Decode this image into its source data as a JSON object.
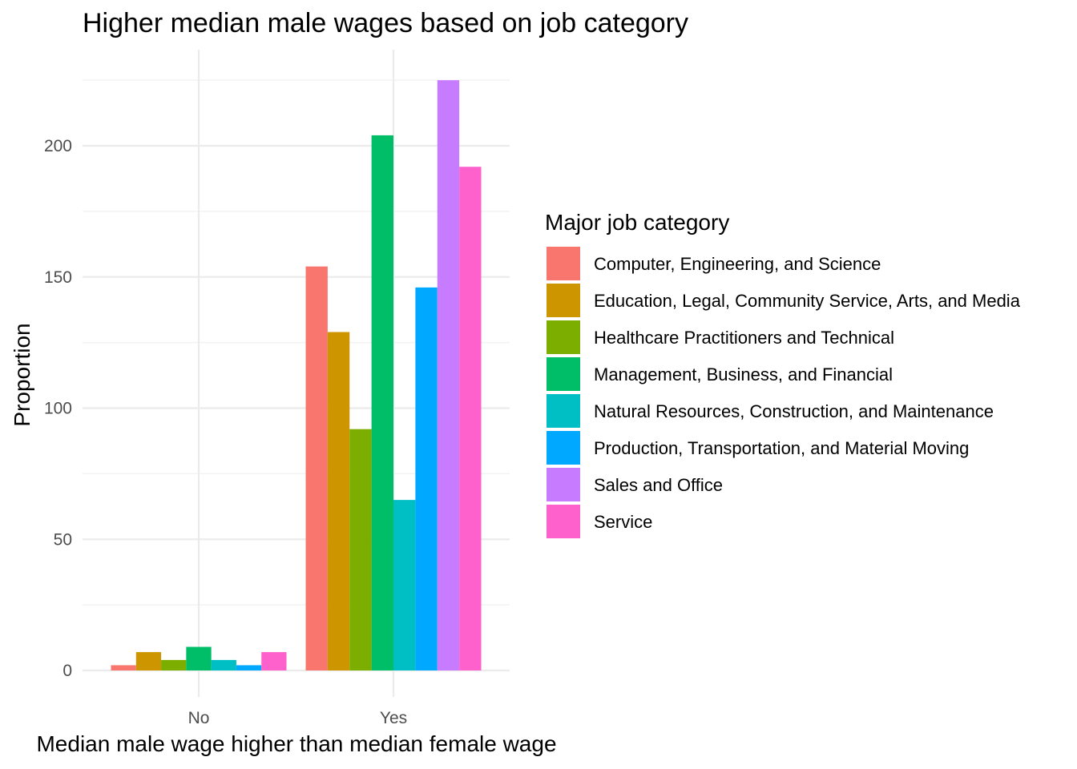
{
  "chart_data": {
    "type": "bar",
    "title": "Higher median male wages based on job category",
    "xlabel": "Median male wage higher than median female wage",
    "ylabel": "Proportion",
    "categories": [
      "No",
      "Yes"
    ],
    "ylim": [
      -10,
      235
    ],
    "yticks": [
      0,
      50,
      100,
      150,
      200
    ],
    "grid": true,
    "legend_position": "right",
    "legend_title": "Major job category",
    "series": [
      {
        "name": "Computer, Engineering, and Science",
        "color": "#F8766D",
        "values": [
          2,
          154
        ]
      },
      {
        "name": "Education, Legal, Community Service, Arts, and Media",
        "color": "#CD9600",
        "values": [
          7,
          129
        ]
      },
      {
        "name": "Healthcare Practitioners and Technical",
        "color": "#7CAE00",
        "values": [
          4,
          92
        ]
      },
      {
        "name": "Management, Business, and Financial",
        "color": "#00BE67",
        "values": [
          9,
          204
        ]
      },
      {
        "name": "Natural Resources, Construction, and Maintenance",
        "color": "#00BFC4",
        "values": [
          4,
          65
        ]
      },
      {
        "name": "Production, Transportation, and Material Moving",
        "color": "#00A9FF",
        "values": [
          2,
          146
        ]
      },
      {
        "name": "Sales and Office",
        "color": "#C77CFF",
        "values": [
          null,
          225
        ]
      },
      {
        "name": "Service",
        "color": "#FF61CC",
        "values": [
          7,
          192
        ]
      }
    ]
  }
}
